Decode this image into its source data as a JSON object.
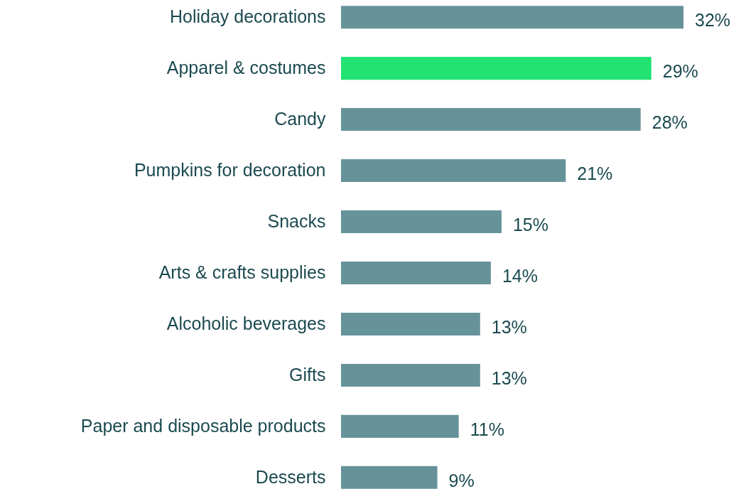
{
  "chart_data": {
    "type": "bar",
    "orientation": "horizontal",
    "categories": [
      "Holiday decorations",
      "Apparel & costumes",
      "Candy",
      "Pumpkins for decoration",
      "Snacks",
      "Arts & crafts supplies",
      "Alcoholic beverages",
      "Gifts",
      "Paper and disposable products",
      "Desserts"
    ],
    "values": [
      32,
      29,
      28,
      21,
      15,
      14,
      13,
      13,
      11,
      9
    ],
    "value_labels": [
      "32%",
      "29%",
      "28%",
      "21%",
      "15%",
      "14%",
      "13%",
      "13%",
      "11%",
      "9%"
    ],
    "colors": [
      "#66939a",
      "#22e372",
      "#66939a",
      "#66939a",
      "#66939a",
      "#66939a",
      "#66939a",
      "#66939a",
      "#66939a",
      "#66939a"
    ],
    "tick_labels": "y"
  }
}
